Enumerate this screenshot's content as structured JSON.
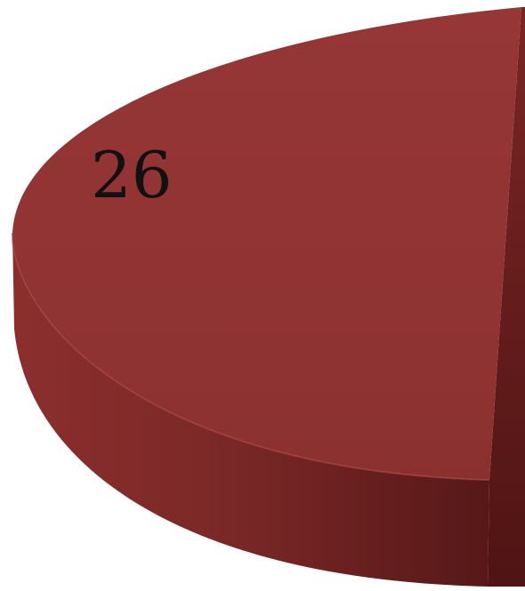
{
  "chart_data": {
    "type": "pie",
    "style": "3d",
    "slices": [
      {
        "label": "",
        "value": 26,
        "color": "#933434"
      }
    ],
    "data_labels": [
      "26"
    ],
    "colors": {
      "slice_top": "#933434",
      "slice_side_light": "#7f2a29",
      "slice_side_dark": "#5d1a19",
      "label_text": "#111111"
    }
  }
}
